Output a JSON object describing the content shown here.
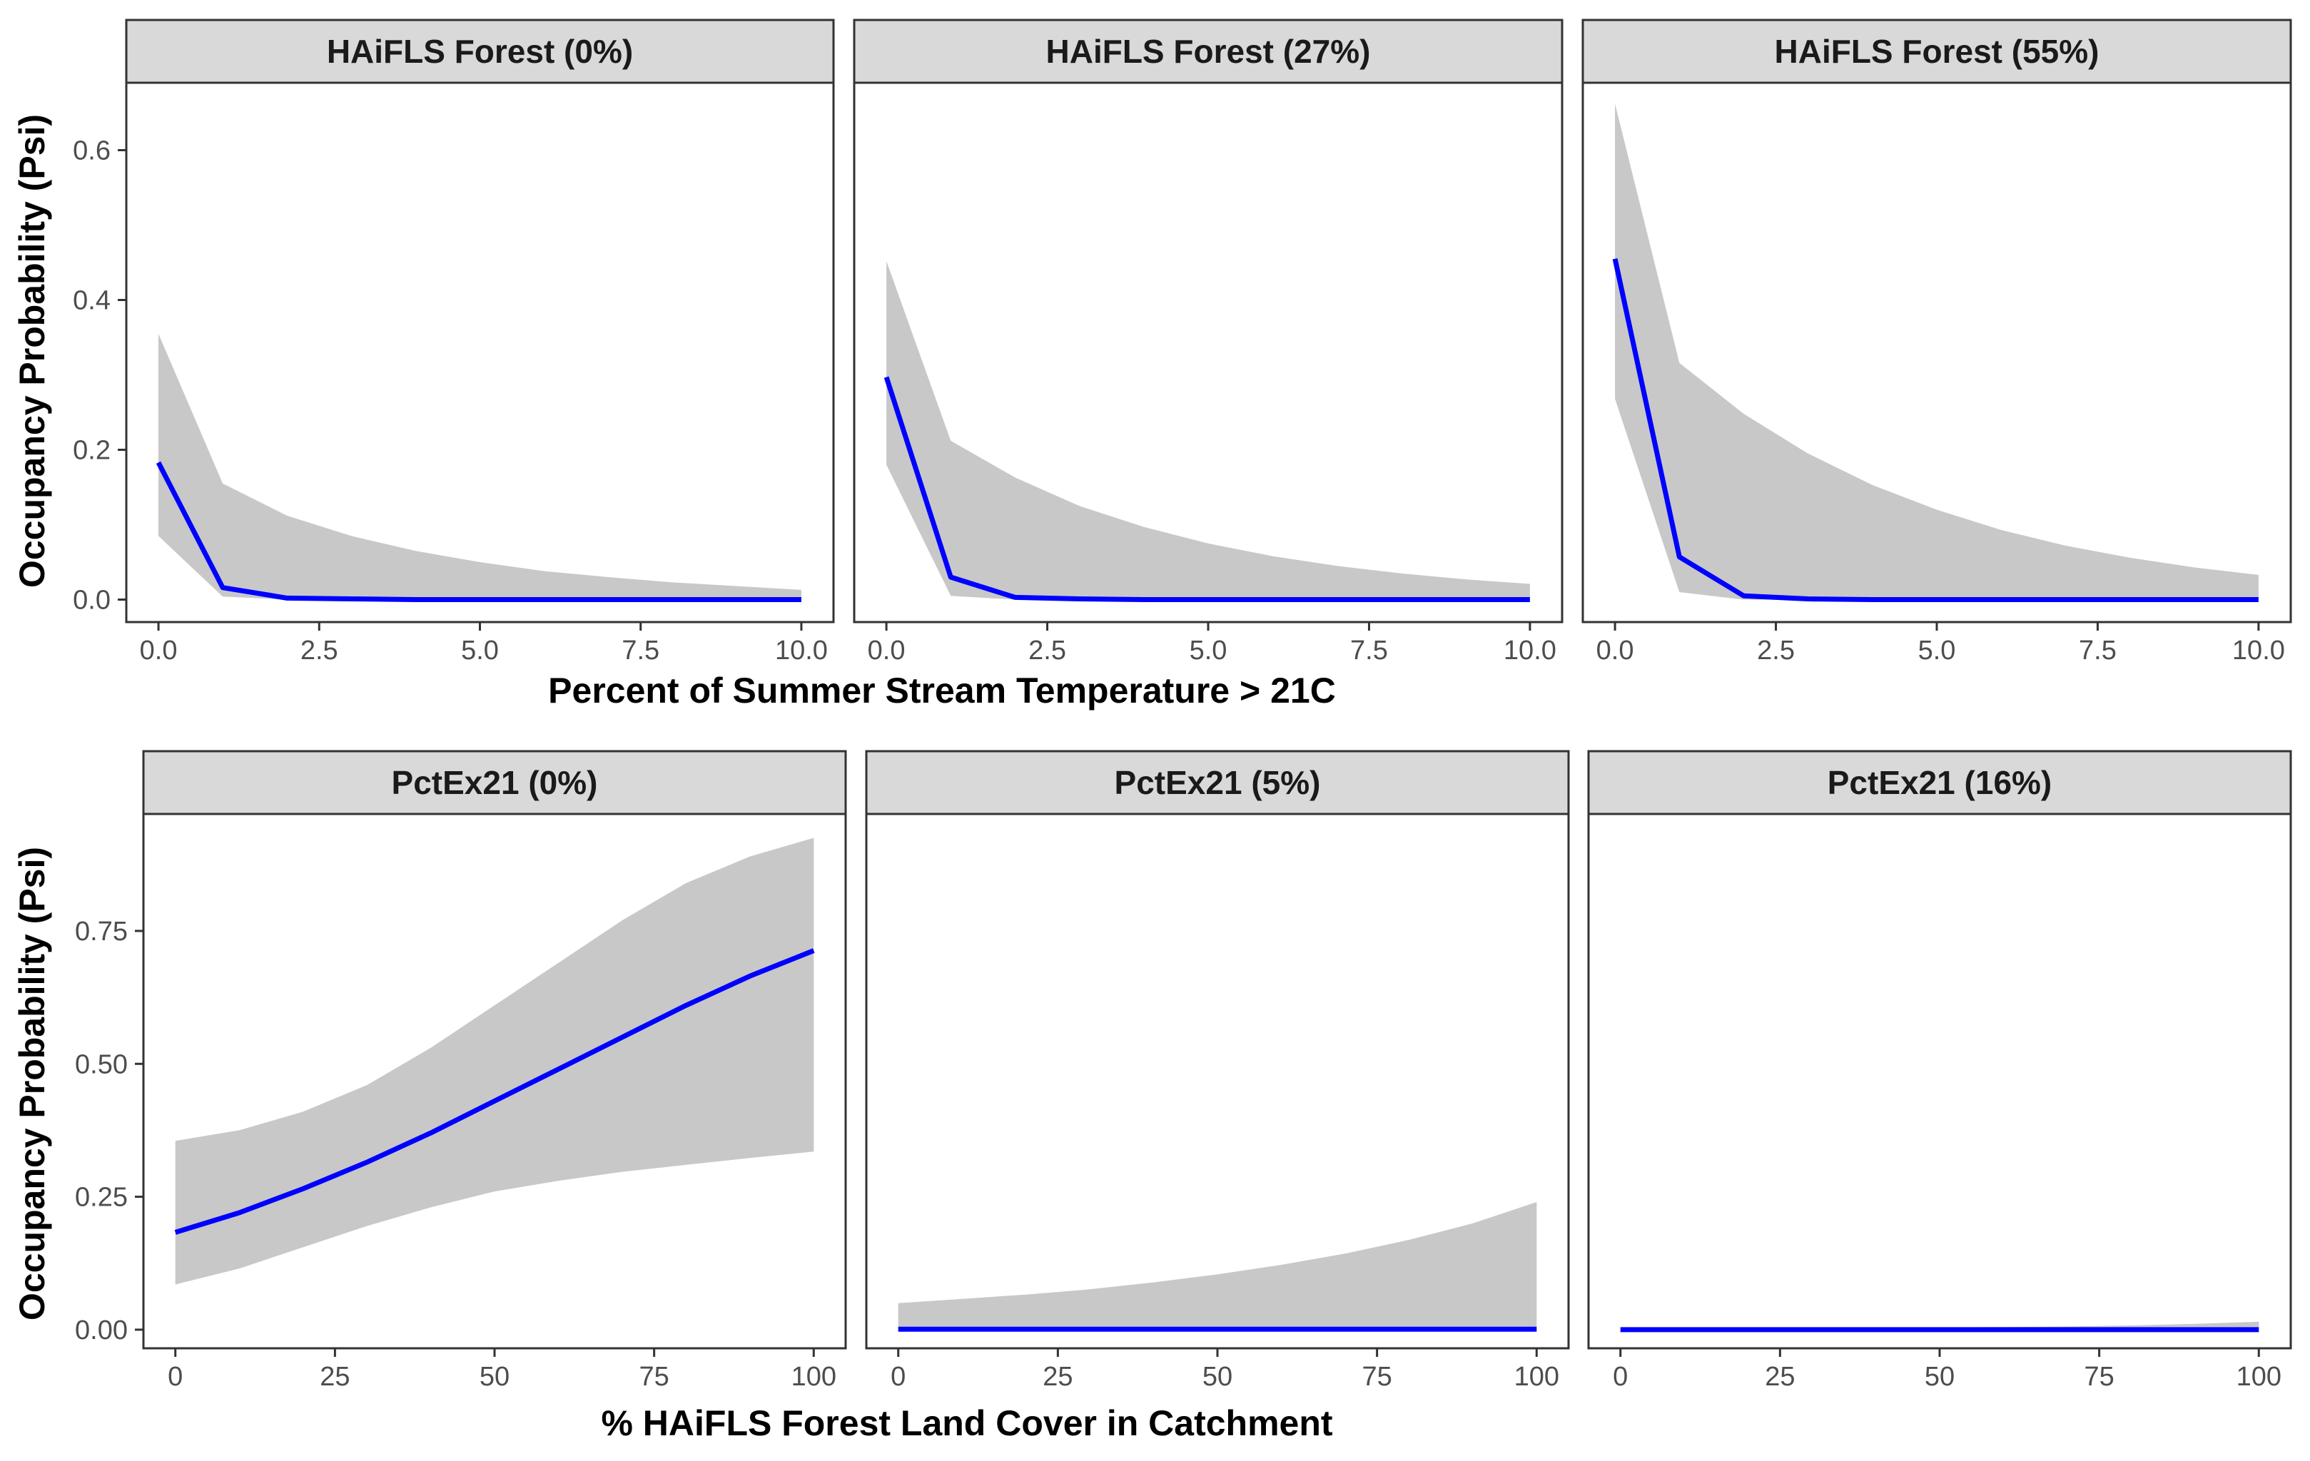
{
  "chart_data": [
    {
      "type": "line",
      "title": "HAiFLS Forest (0%)",
      "xlabel": "Percent of Summer Stream Temperature > 21C",
      "ylabel": "Occupancy Probability (Psi)",
      "xlim": [
        -0.5,
        10.5
      ],
      "ylim": [
        -0.03,
        0.69
      ],
      "x_ticks": [
        0,
        2.5,
        5,
        7.5,
        10
      ],
      "x_tick_labels": [
        "0.0",
        "2.5",
        "5.0",
        "7.5",
        "10.0"
      ],
      "y_ticks": [
        0,
        0.2,
        0.4,
        0.6
      ],
      "y_tick_labels": [
        "0.0",
        "0.2",
        "0.4",
        "0.6"
      ],
      "grid": false,
      "series": [
        {
          "x": [
            0,
            1,
            2,
            3,
            4,
            5,
            6,
            7,
            8,
            9,
            10
          ],
          "y": [
            0.183,
            0.016,
            0.002,
            0.001,
            0,
            0,
            0,
            0,
            0,
            0,
            0
          ],
          "lower": [
            0.085,
            0.004,
            0.0,
            0.0,
            0,
            0,
            0,
            0,
            0,
            0,
            0
          ],
          "upper": [
            0.355,
            0.155,
            0.112,
            0.085,
            0.065,
            0.05,
            0.038,
            0.03,
            0.023,
            0.018,
            0.013
          ],
          "color": "#0000ff"
        }
      ]
    },
    {
      "type": "line",
      "title": "HAiFLS Forest (27%)",
      "xlabel": "Percent of Summer Stream Temperature > 21C",
      "ylabel": "Occupancy Probability (Psi)",
      "xlim": [
        -0.5,
        10.5
      ],
      "ylim": [
        -0.03,
        0.69
      ],
      "x_ticks": [
        0,
        2.5,
        5,
        7.5,
        10
      ],
      "x_tick_labels": [
        "0.0",
        "2.5",
        "5.0",
        "7.5",
        "10.0"
      ],
      "y_ticks": [
        0,
        0.2,
        0.4,
        0.6
      ],
      "y_tick_labels": [
        "0.0",
        "0.2",
        "0.4",
        "0.6"
      ],
      "grid": false,
      "series": [
        {
          "x": [
            0,
            1,
            2,
            3,
            4,
            5,
            6,
            7,
            8,
            9,
            10
          ],
          "y": [
            0.297,
            0.03,
            0.003,
            0.001,
            0,
            0,
            0,
            0,
            0,
            0,
            0
          ],
          "lower": [
            0.18,
            0.005,
            0.0,
            0.0,
            0,
            0,
            0,
            0,
            0,
            0,
            0
          ],
          "upper": [
            0.452,
            0.212,
            0.163,
            0.125,
            0.097,
            0.075,
            0.058,
            0.045,
            0.035,
            0.027,
            0.021
          ],
          "color": "#0000ff"
        }
      ]
    },
    {
      "type": "line",
      "title": "HAiFLS Forest (55%)",
      "xlabel": "Percent of Summer Stream Temperature > 21C",
      "ylabel": "Occupancy Probability (Psi)",
      "xlim": [
        -0.5,
        10.5
      ],
      "ylim": [
        -0.03,
        0.69
      ],
      "x_ticks": [
        0,
        2.5,
        5,
        7.5,
        10
      ],
      "x_tick_labels": [
        "0.0",
        "2.5",
        "5.0",
        "7.5",
        "10.0"
      ],
      "y_ticks": [
        0,
        0.2,
        0.4,
        0.6
      ],
      "y_tick_labels": [
        "0.0",
        "0.2",
        "0.4",
        "0.6"
      ],
      "grid": false,
      "series": [
        {
          "x": [
            0,
            1,
            2,
            3,
            4,
            5,
            6,
            7,
            8,
            9,
            10
          ],
          "y": [
            0.455,
            0.057,
            0.005,
            0.001,
            0,
            0,
            0,
            0,
            0,
            0,
            0
          ],
          "lower": [
            0.268,
            0.01,
            0.0,
            0.0,
            0,
            0,
            0,
            0,
            0,
            0,
            0
          ],
          "upper": [
            0.662,
            0.316,
            0.248,
            0.195,
            0.153,
            0.12,
            0.093,
            0.072,
            0.056,
            0.043,
            0.033
          ],
          "color": "#0000ff"
        }
      ]
    },
    {
      "type": "line",
      "title": "PctEx21 (0%)",
      "xlabel": "% HAiFLS Forest Land Cover in Catchment",
      "ylabel": "Occupancy Probability (Psi)",
      "xlim": [
        -5,
        105
      ],
      "ylim": [
        -0.035,
        0.97
      ],
      "x_ticks": [
        0,
        25,
        50,
        75,
        100
      ],
      "x_tick_labels": [
        "0",
        "25",
        "50",
        "75",
        "100"
      ],
      "y_ticks": [
        0,
        0.25,
        0.5,
        0.75
      ],
      "y_tick_labels": [
        "0.00",
        "0.25",
        "0.50",
        "0.75"
      ],
      "grid": false,
      "series": [
        {
          "x": [
            0,
            10,
            20,
            30,
            40,
            50,
            60,
            70,
            80,
            90,
            100
          ],
          "y": [
            0.183,
            0.22,
            0.265,
            0.315,
            0.37,
            0.43,
            0.49,
            0.55,
            0.61,
            0.665,
            0.713
          ],
          "lower": [
            0.085,
            0.115,
            0.155,
            0.195,
            0.23,
            0.26,
            0.28,
            0.297,
            0.31,
            0.323,
            0.335
          ],
          "upper": [
            0.355,
            0.375,
            0.41,
            0.46,
            0.53,
            0.61,
            0.69,
            0.77,
            0.84,
            0.89,
            0.925
          ],
          "color": "#0000ff"
        }
      ]
    },
    {
      "type": "line",
      "title": "PctEx21 (5%)",
      "xlabel": "% HAiFLS Forest Land Cover in Catchment",
      "ylabel": "Occupancy Probability (Psi)",
      "xlim": [
        -5,
        105
      ],
      "ylim": [
        -0.035,
        0.97
      ],
      "x_ticks": [
        0,
        25,
        50,
        75,
        100
      ],
      "x_tick_labels": [
        "0",
        "25",
        "50",
        "75",
        "100"
      ],
      "y_ticks": [
        0,
        0.25,
        0.5,
        0.75
      ],
      "y_tick_labels": [
        "0.00",
        "0.25",
        "0.50",
        "0.75"
      ],
      "grid": false,
      "series": [
        {
          "x": [
            0,
            10,
            20,
            30,
            40,
            50,
            60,
            70,
            80,
            90,
            100
          ],
          "y": [
            0.001,
            0.001,
            0.001,
            0.001,
            0.001,
            0.001,
            0.001,
            0.001,
            0.001,
            0.001,
            0.001
          ],
          "lower": [
            0,
            0,
            0,
            0,
            0,
            0,
            0,
            0,
            0,
            0,
            0
          ],
          "upper": [
            0.05,
            0.058,
            0.066,
            0.076,
            0.089,
            0.104,
            0.122,
            0.143,
            0.169,
            0.2,
            0.24
          ],
          "color": "#0000ff"
        }
      ]
    },
    {
      "type": "line",
      "title": "PctEx21 (16%)",
      "xlabel": "% HAiFLS Forest Land Cover in Catchment",
      "ylabel": "Occupancy Probability (Psi)",
      "xlim": [
        -5,
        105
      ],
      "ylim": [
        -0.035,
        0.97
      ],
      "x_ticks": [
        0,
        25,
        50,
        75,
        100
      ],
      "x_tick_labels": [
        "0",
        "25",
        "50",
        "75",
        "100"
      ],
      "y_ticks": [
        0,
        0.25,
        0.5,
        0.75
      ],
      "y_tick_labels": [
        "0.00",
        "0.25",
        "0.50",
        "0.75"
      ],
      "grid": false,
      "series": [
        {
          "x": [
            0,
            10,
            20,
            30,
            40,
            50,
            60,
            70,
            80,
            90,
            100
          ],
          "y": [
            0,
            0,
            0,
            0,
            0,
            0,
            0,
            0,
            0,
            0,
            0
          ],
          "lower": [
            0,
            0,
            0,
            0,
            0,
            0,
            0,
            0,
            0,
            0,
            0
          ],
          "upper": [
            0.001,
            0.001,
            0.002,
            0.002,
            0.003,
            0.004,
            0.005,
            0.006,
            0.008,
            0.011,
            0.015
          ],
          "color": "#0000ff"
        }
      ]
    }
  ],
  "colors": {
    "line": "#0000ff",
    "ribbon": "#c8c8c8",
    "strip_fill": "#d9d9d9",
    "panel_border": "#333333",
    "tick_text": "#4d4d4d"
  },
  "shared": {
    "top_xlabel": "Percent of Summer Stream Temperature > 21C",
    "bottom_xlabel": "% HAiFLS Forest Land Cover in Catchment",
    "top_ylabel": "Occupancy Probability (Psi)",
    "bottom_ylabel": "Occupancy Probability (Psi)"
  }
}
